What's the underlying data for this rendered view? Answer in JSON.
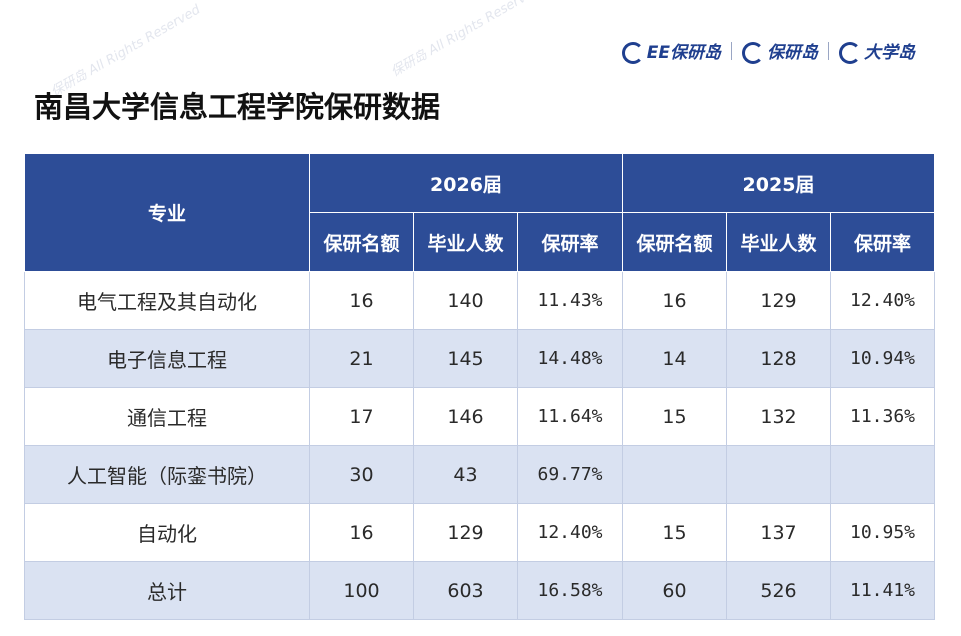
{
  "title": "南昌大学信息工程学院保研数据",
  "logos": [
    "EE保研岛",
    "保研岛",
    "大学岛"
  ],
  "watermark": {
    "brand": "保研岛",
    "text": "All Rights Reserved"
  },
  "table": {
    "header_major": "专业",
    "year_2026": "2026届",
    "year_2025": "2025届",
    "sub_headers": [
      "保研名额",
      "毕业人数",
      "保研率"
    ],
    "rows": [
      {
        "major": "电气工程及其自动化",
        "y2026": [
          "16",
          "140",
          "11.43%"
        ],
        "y2025": [
          "16",
          "129",
          "12.40%"
        ]
      },
      {
        "major": "电子信息工程",
        "y2026": [
          "21",
          "145",
          "14.48%"
        ],
        "y2025": [
          "14",
          "128",
          "10.94%"
        ]
      },
      {
        "major": "通信工程",
        "y2026": [
          "17",
          "146",
          "11.64%"
        ],
        "y2025": [
          "15",
          "132",
          "11.36%"
        ]
      },
      {
        "major": "人工智能（际銮书院）",
        "y2026": [
          "30",
          "43",
          "69.77%"
        ],
        "y2025": [
          "",
          "",
          ""
        ]
      },
      {
        "major": "自动化",
        "y2026": [
          "16",
          "129",
          "12.40%"
        ],
        "y2025": [
          "15",
          "137",
          "10.95%"
        ]
      },
      {
        "major": "总计",
        "y2026": [
          "100",
          "603",
          "16.58%"
        ],
        "y2025": [
          "60",
          "526",
          "11.41%"
        ]
      }
    ]
  }
}
